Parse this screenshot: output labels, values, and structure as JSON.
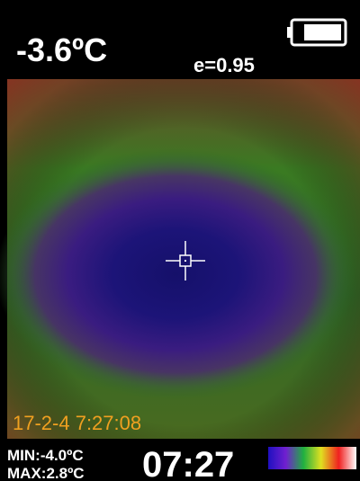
{
  "header": {
    "temperature": "-3.6ºC",
    "emissivity": "e=0.95"
  },
  "image": {
    "timestamp": "17-2-4 7:27:08"
  },
  "footer": {
    "min": "MIN:-4.0ºC",
    "max": "MAX:2.8ºC",
    "time": "07:27"
  }
}
